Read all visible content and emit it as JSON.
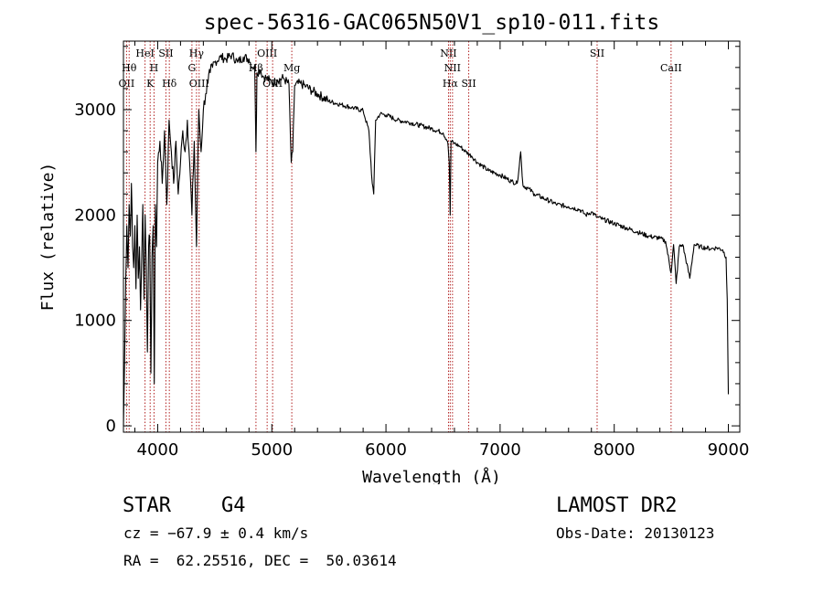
{
  "chart_data": {
    "type": "line",
    "title": "spec-56316-GAC065N50V1_sp10-011.fits",
    "xlabel": "Wavelength (Å)",
    "ylabel": "Flux (relative)",
    "xlim": [
      3700,
      9100
    ],
    "ylim": [
      -60,
      3650
    ],
    "x_ticks": [
      4000,
      5000,
      6000,
      7000,
      8000,
      9000
    ],
    "y_ticks": [
      0,
      1000,
      2000,
      3000
    ],
    "x_tick_labels": [
      "4000",
      "5000",
      "6000",
      "7000",
      "8000",
      "9000"
    ],
    "y_tick_labels": [
      "0",
      "1000",
      "2000",
      "3000"
    ],
    "line_color": "#000000",
    "marker_color": "#b22222",
    "series": [
      {
        "name": "flux",
        "x": [
          3700,
          3710,
          3720,
          3730,
          3740,
          3750,
          3760,
          3770,
          3780,
          3790,
          3800,
          3810,
          3820,
          3830,
          3840,
          3850,
          3860,
          3870,
          3880,
          3890,
          3900,
          3910,
          3920,
          3930,
          3940,
          3950,
          3960,
          3970,
          3980,
          3990,
          4000,
          4020,
          4040,
          4060,
          4080,
          4100,
          4120,
          4140,
          4160,
          4180,
          4200,
          4220,
          4240,
          4260,
          4280,
          4300,
          4320,
          4340,
          4360,
          4380,
          4400,
          4420,
          4440,
          4460,
          4480,
          4500,
          4550,
          4600,
          4650,
          4700,
          4750,
          4800,
          4830,
          4850,
          4861,
          4870,
          4900,
          4920,
          4950,
          4980,
          5000,
          5050,
          5100,
          5150,
          5170,
          5183,
          5200,
          5250,
          5300,
          5350,
          5400,
          5500,
          5600,
          5700,
          5800,
          5850,
          5880,
          5893,
          5910,
          5950,
          6000,
          6100,
          6200,
          6300,
          6400,
          6500,
          6540,
          6555,
          6563,
          6570,
          6600,
          6650,
          6700,
          6750,
          6800,
          6900,
          7000,
          7100,
          7150,
          7180,
          7200,
          7250,
          7300,
          7400,
          7500,
          7600,
          7700,
          7750,
          7800,
          7850,
          7900,
          8000,
          8100,
          8200,
          8300,
          8400,
          8450,
          8498,
          8520,
          8542,
          8570,
          8600,
          8662,
          8700,
          8750,
          8800,
          8850,
          8900,
          8950,
          8980,
          8990,
          9000
        ],
        "values": [
          0,
          600,
          1400,
          1900,
          1500,
          2100,
          1800,
          2300,
          1700,
          1500,
          1900,
          1300,
          2000,
          1400,
          1700,
          1100,
          1600,
          2100,
          1200,
          2000,
          1500,
          700,
          1700,
          1800,
          500,
          1600,
          1900,
          400,
          2100,
          1700,
          2500,
          2700,
          2300,
          2800,
          2100,
          2900,
          2600,
          2300,
          2700,
          2200,
          2500,
          2800,
          2600,
          2900,
          2500,
          2000,
          2700,
          1700,
          3000,
          2600,
          3000,
          3150,
          3250,
          3350,
          3400,
          3450,
          3500,
          3480,
          3520,
          3450,
          3500,
          3480,
          3400,
          3420,
          2600,
          3350,
          3380,
          3320,
          3300,
          3280,
          3250,
          3280,
          3300,
          3240,
          2500,
          2600,
          3230,
          3250,
          3220,
          3180,
          3150,
          3080,
          3050,
          3020,
          2990,
          2800,
          2300,
          2200,
          2900,
          2960,
          2950,
          2900,
          2880,
          2850,
          2820,
          2780,
          2700,
          2500,
          2000,
          2700,
          2680,
          2650,
          2600,
          2560,
          2500,
          2420,
          2380,
          2320,
          2300,
          2600,
          2280,
          2250,
          2200,
          2150,
          2100,
          2080,
          2050,
          2000,
          2030,
          1980,
          1960,
          1920,
          1880,
          1840,
          1800,
          1780,
          1750,
          1450,
          1720,
          1350,
          1700,
          1720,
          1400,
          1720,
          1700,
          1690,
          1680,
          1690,
          1670,
          1600,
          1200,
          300
        ]
      }
    ],
    "line_markers": [
      {
        "wavelength": 3727,
        "label": "OII",
        "row": 3
      },
      {
        "wavelength": 3750,
        "label": "Hθ",
        "row": 2
      },
      {
        "wavelength": 3889,
        "label": "HeI",
        "row": 1
      },
      {
        "wavelength": 3934,
        "label": "K",
        "row": 3
      },
      {
        "wavelength": 3968,
        "label": "H",
        "row": 2
      },
      {
        "wavelength": 4072,
        "label": "SII",
        "row": 1
      },
      {
        "wavelength": 4102,
        "label": "Hδ",
        "row": 3
      },
      {
        "wavelength": 4300,
        "label": "G",
        "row": 2
      },
      {
        "wavelength": 4340,
        "label": "Hγ",
        "row": 1
      },
      {
        "wavelength": 4363,
        "label": "OIII",
        "row": 3
      },
      {
        "wavelength": 4861,
        "label": "Hβ",
        "row": 2
      },
      {
        "wavelength": 4959,
        "label": "OIII",
        "row": 1
      },
      {
        "wavelength": 5007,
        "label": "OIII",
        "row": 3
      },
      {
        "wavelength": 5175,
        "label": "Mg",
        "row": 2
      },
      {
        "wavelength": 6548,
        "label": "NII",
        "row": 1
      },
      {
        "wavelength": 6563,
        "label": "Hα",
        "row": 3
      },
      {
        "wavelength": 6583,
        "label": "NII",
        "row": 2
      },
      {
        "wavelength": 6725,
        "label": "SII",
        "row": 3
      },
      {
        "wavelength": 7850,
        "label": "SII",
        "row": 1
      },
      {
        "wavelength": 8498,
        "label": "CaII",
        "row": 2
      }
    ]
  },
  "info": {
    "object_class": "STAR",
    "subclass": "G4",
    "survey": "LAMOST DR2",
    "redshift": "cz = −67.9 ± 0.4 km/s",
    "obs_date": "Obs-Date: 20130123",
    "coords": "RA =  62.25516, DEC =  50.03614"
  }
}
